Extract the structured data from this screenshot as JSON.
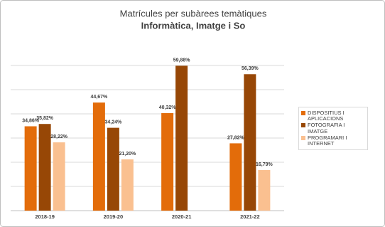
{
  "chart_data": {
    "type": "bar",
    "title": "Matrícules per subàrees temàtiques",
    "subtitle": "Informàtica, Imatge i So",
    "categories": [
      "2018-19",
      "2019-20",
      "2020-21",
      "2021-22"
    ],
    "series": [
      {
        "name": "DISPOSITIUS I APLICACIONS",
        "color": "#e36c0a",
        "values": [
          34.86,
          44.67,
          40.32,
          27.82
        ],
        "value_labels": [
          "34,86%",
          "44,67%",
          "40,32%",
          "27,82%"
        ]
      },
      {
        "name": "FOTOGRAFIA I IMATGE",
        "color": "#974706",
        "values": [
          35.82,
          34.24,
          59.88,
          56.39
        ],
        "value_labels": [
          "35,82%",
          "34,24%",
          "59,88%",
          "56,39%"
        ]
      },
      {
        "name": "PROGRAMARI I INTERNET",
        "color": "#fac090",
        "values": [
          28.22,
          21.2,
          null,
          16.79
        ],
        "value_labels": [
          "28,22%",
          "21,20%",
          null,
          "16,79%"
        ]
      }
    ],
    "ylim": [
      0,
      60
    ],
    "yticks": [
      0,
      10,
      20,
      30,
      40,
      50,
      60
    ],
    "show_ytick_labels": false,
    "grid": true,
    "legend": "right"
  }
}
